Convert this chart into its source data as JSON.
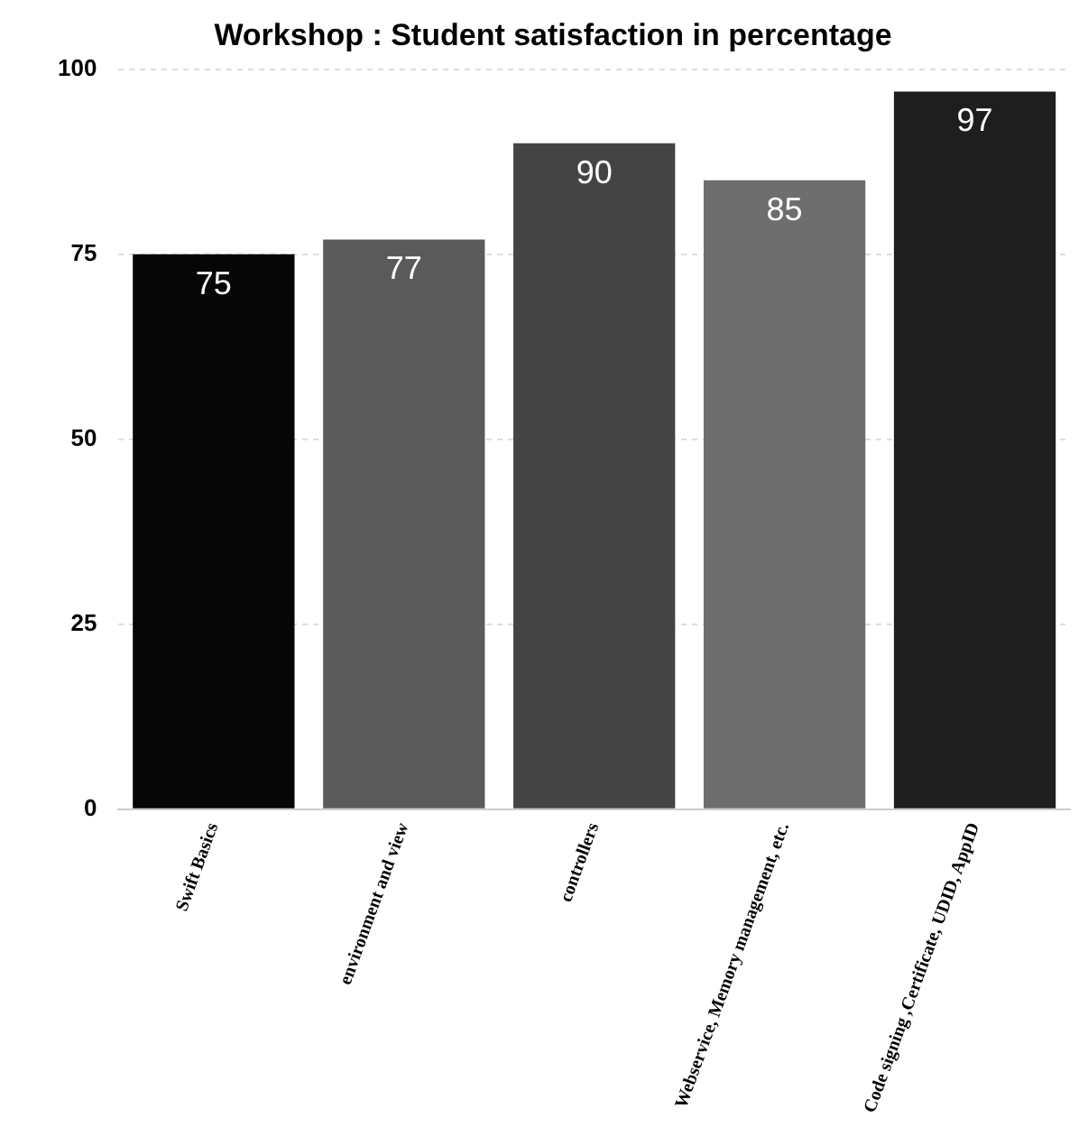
{
  "chart_data": {
    "type": "bar",
    "title": "Workshop : Student satisfaction in percentage",
    "categories": [
      "Swift Basics",
      "environment and view",
      "controllers",
      "Webservice, Memory management, etc.",
      "Code signing ,Certificate, UDID, AppID"
    ],
    "values": [
      75,
      77,
      90,
      85,
      97
    ],
    "colors": [
      "#060606",
      "#5a5a5a",
      "#444444",
      "#6e6e6e",
      "#1e1e1e"
    ],
    "ylim": [
      0,
      100
    ],
    "yticks": [
      0,
      25,
      50,
      75,
      100
    ],
    "grid": "y",
    "data_labels": true
  }
}
